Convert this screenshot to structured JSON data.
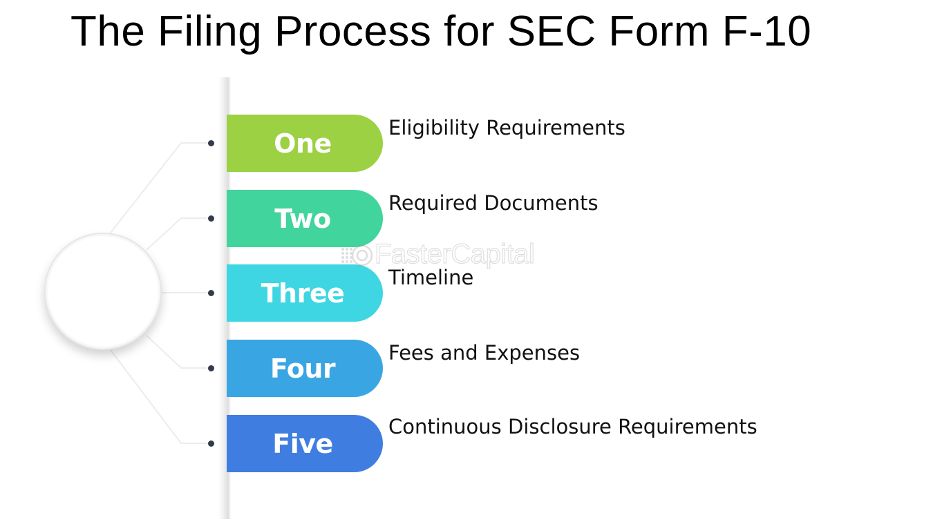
{
  "title": "The Filing Process for SEC Form F-10",
  "steps": [
    {
      "number": "One",
      "label": "Eligibility Requirements",
      "color": "#9bd143"
    },
    {
      "number": "Two",
      "label": "Required Documents",
      "color": "#41d49c"
    },
    {
      "number": "Three",
      "label": "Timeline",
      "color": "#3dd6e2"
    },
    {
      "number": "Four",
      "label": "Fees and Expenses",
      "color": "#3aa5e3"
    },
    {
      "number": "Five",
      "label": "Continuous Disclosure Requirements",
      "color": "#3f7ee0"
    }
  ],
  "watermark": {
    "text": "FasterCapital",
    "icon": "fastercapital-logo-icon"
  }
}
